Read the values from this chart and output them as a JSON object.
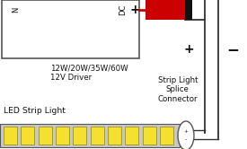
{
  "driver_label_line1": "12W/20W/35W/60W",
  "driver_label_line2": "12V Driver",
  "dc_label": "DC",
  "n_label": "N",
  "plus_label_top": "+",
  "plus_label_mid": "+",
  "minus_label": "−",
  "strip_connector_label": "Strip Light\nSplice\nConnector",
  "led_strip_label": "LED Strip Light",
  "wire_color_red": "#cc0000",
  "wire_color_black": "#333333",
  "led_color": "#f5e030",
  "box_line_color": "#555555",
  "text_color": "#111111",
  "font_size_main": 6.0,
  "font_size_label": 6.2,
  "font_size_symbol": 9.0
}
